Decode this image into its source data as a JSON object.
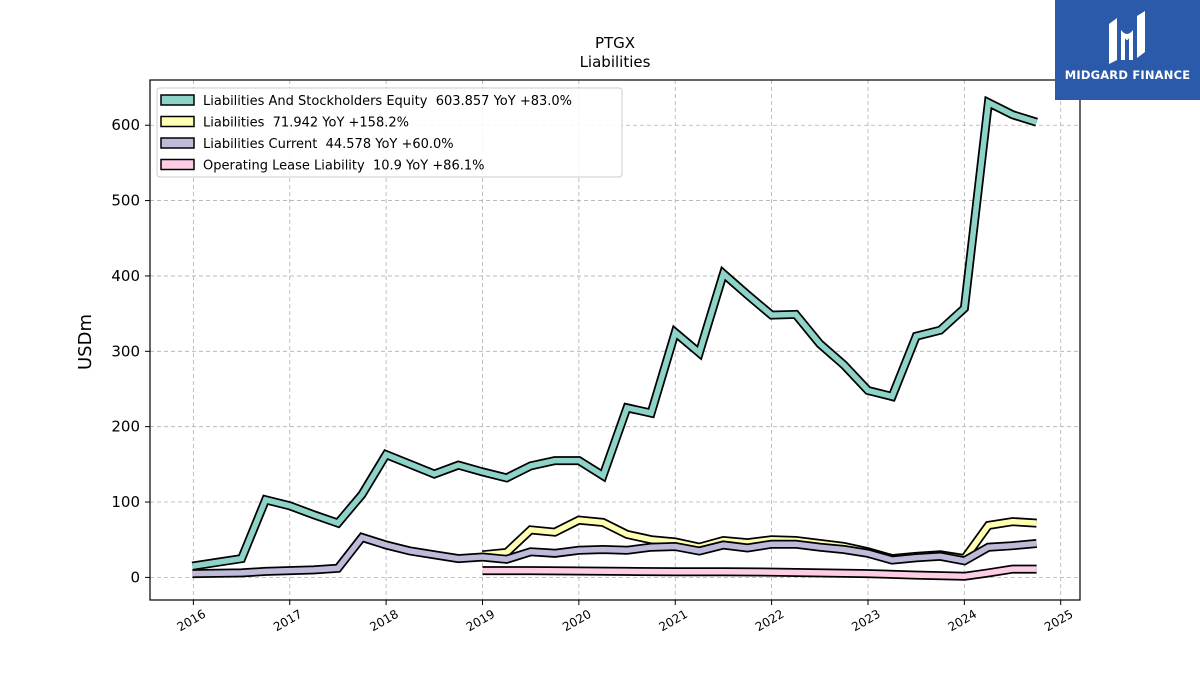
{
  "brand": {
    "name": "MIDGARD FINANCE",
    "logo_icon": "midgard-logo-icon",
    "background": "#2b5aab"
  },
  "chart_data": {
    "type": "line",
    "title": "PTGX",
    "subtitle": "Liabilities",
    "ylabel": "USDm",
    "xlabel": "",
    "xlim": [
      2015.55,
      2025.2
    ],
    "ylim": [
      -30,
      660
    ],
    "x_ticks": [
      2016,
      2017,
      2018,
      2019,
      2020,
      2021,
      2022,
      2023,
      2024,
      2025
    ],
    "x_tick_labels": [
      "2016",
      "2017",
      "2018",
      "2019",
      "2020",
      "2021",
      "2022",
      "2023",
      "2024",
      "2025"
    ],
    "y_ticks": [
      0,
      100,
      200,
      300,
      400,
      500,
      600
    ],
    "y_tick_labels": [
      "0",
      "100",
      "200",
      "300",
      "400",
      "500",
      "600"
    ],
    "grid": true,
    "legend_position": "top-left",
    "series": [
      {
        "name": "Liabilities And Stockholders Equity  603.857 YoY +83.0%",
        "color": "#8dd3c7",
        "x": [
          2015.99,
          2016.5,
          2016.75,
          2017.0,
          2017.25,
          2017.5,
          2017.75,
          2018.0,
          2018.25,
          2018.5,
          2018.75,
          2019.0,
          2019.25,
          2019.5,
          2019.75,
          2020.0,
          2020.25,
          2020.5,
          2020.75,
          2021.0,
          2021.25,
          2021.5,
          2021.75,
          2022.0,
          2022.25,
          2022.5,
          2022.75,
          2023.0,
          2023.25,
          2023.5,
          2023.75,
          2024.0,
          2024.25,
          2024.5,
          2024.75
        ],
        "y": [
          15,
          25,
          103,
          95,
          83,
          72,
          110,
          163,
          150,
          137,
          149,
          140,
          132,
          148,
          155,
          155,
          135,
          225,
          218,
          325,
          298,
          403,
          375,
          348,
          349,
          310,
          282,
          248,
          240,
          320,
          328,
          357,
          630,
          614,
          604
        ]
      },
      {
        "name": "Liabilities  71.942 YoY +158.2%",
        "color": "#ffffb3",
        "x": [
          2019.0,
          2019.25,
          2019.5,
          2019.75,
          2020.0,
          2020.25,
          2020.5,
          2020.75,
          2021.0,
          2021.25,
          2021.5,
          2021.75,
          2022.0,
          2022.25,
          2022.5,
          2022.75,
          2023.0,
          2023.25,
          2023.5,
          2023.75,
          2024.0,
          2024.25,
          2024.5,
          2024.75
        ],
        "y": [
          30,
          33,
          63,
          60,
          76,
          73,
          57,
          50,
          47,
          40,
          49,
          46,
          50,
          49,
          45,
          41,
          34,
          25,
          28,
          30,
          25,
          69,
          74,
          72
        ]
      },
      {
        "name": "Liabilities Current  44.578 YoY +60.0%",
        "color": "#bebada",
        "x": [
          2015.99,
          2016.5,
          2016.75,
          2017.0,
          2017.25,
          2017.5,
          2017.75,
          2018.0,
          2018.25,
          2018.5,
          2018.75,
          2019.0,
          2019.25,
          2019.5,
          2019.75,
          2020.0,
          2020.25,
          2020.5,
          2020.75,
          2021.0,
          2021.25,
          2021.5,
          2021.75,
          2022.0,
          2022.25,
          2022.5,
          2022.75,
          2023.0,
          2023.25,
          2023.5,
          2023.75,
          2024.0,
          2024.25,
          2024.5,
          2024.75
        ],
        "y": [
          5,
          6,
          8,
          9,
          10,
          12,
          53,
          43,
          35,
          30,
          25,
          27,
          24,
          34,
          32,
          36,
          37,
          36,
          40,
          41,
          35,
          43,
          39,
          44,
          44,
          40,
          37,
          32,
          23,
          26,
          28,
          22,
          40,
          42,
          45
        ]
      },
      {
        "name": "Operating Lease Liability  10.9 YoY +86.1%",
        "color": "#fccde5",
        "x": [
          2019.0,
          2019.5,
          2020.0,
          2020.5,
          2021.0,
          2021.5,
          2022.0,
          2022.5,
          2023.0,
          2023.5,
          2024.0,
          2024.25,
          2024.5,
          2024.75
        ],
        "y": [
          9,
          9,
          8.5,
          8,
          7.5,
          7.5,
          7,
          6,
          5,
          3,
          1.5,
          6,
          11,
          11
        ]
      }
    ]
  }
}
